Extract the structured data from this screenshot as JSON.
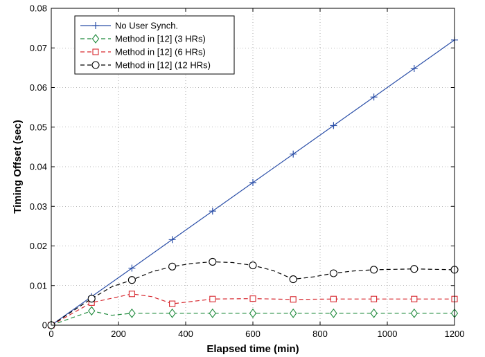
{
  "chart_data": {
    "type": "line",
    "xlabel": "Elapsed time (min)",
    "ylabel": "Timing Offset (sec)",
    "xlim": [
      0,
      1200
    ],
    "ylim": [
      0,
      0.08
    ],
    "x_ticks": [
      0,
      200,
      400,
      600,
      800,
      1000,
      1200
    ],
    "y_ticks": [
      0,
      0.01,
      0.02,
      0.03,
      0.04,
      0.05,
      0.06,
      0.07,
      0.08
    ],
    "x_tick_labels": [
      "0",
      "200",
      "400",
      "600",
      "800",
      "1000",
      "1200"
    ],
    "y_tick_labels": [
      "0",
      "0.01",
      "0.02",
      "0.03",
      "0.04",
      "0.05",
      "0.06",
      "0.07",
      "0.08"
    ],
    "grid": true,
    "legend_position": "top-left",
    "series": [
      {
        "name": "No User Synch.",
        "color": "#2b4fa8",
        "line_style": "solid",
        "marker": "plus",
        "x": [
          0,
          120,
          240,
          360,
          480,
          600,
          720,
          840,
          960,
          1080,
          1200
        ],
        "y": [
          0,
          0.0072,
          0.0144,
          0.0216,
          0.0288,
          0.036,
          0.0432,
          0.0504,
          0.0576,
          0.0648,
          0.072
        ],
        "marker_x": [
          0,
          120,
          240,
          360,
          480,
          600,
          720,
          840,
          960,
          1080,
          1200
        ],
        "marker_y": [
          0,
          0.0072,
          0.0144,
          0.0216,
          0.0288,
          0.036,
          0.0432,
          0.0504,
          0.0576,
          0.0648,
          0.072
        ]
      },
      {
        "name": "Method in [12] (3 HRs)",
        "color": "#1f8a3c",
        "line_style": "dashed",
        "marker": "diamond",
        "x": [
          0,
          120,
          180,
          240,
          360,
          480,
          600,
          720,
          840,
          960,
          1080,
          1200
        ],
        "y": [
          0,
          0.0036,
          0.0025,
          0.003,
          0.003,
          0.003,
          0.003,
          0.003,
          0.003,
          0.003,
          0.003,
          0.003
        ],
        "marker_x": [
          0,
          120,
          240,
          360,
          480,
          600,
          720,
          840,
          960,
          1080,
          1200
        ],
        "marker_y": [
          0,
          0.0036,
          0.003,
          0.003,
          0.003,
          0.003,
          0.003,
          0.003,
          0.003,
          0.003,
          0.003
        ]
      },
      {
        "name": "Method in [12] (6 HRs)",
        "color": "#d7282f",
        "line_style": "dashed",
        "marker": "square",
        "x": [
          0,
          120,
          240,
          300,
          360,
          480,
          600,
          720,
          840,
          960,
          1080,
          1200
        ],
        "y": [
          0,
          0.0057,
          0.0079,
          0.0072,
          0.0054,
          0.0066,
          0.0067,
          0.0065,
          0.0066,
          0.0066,
          0.0066,
          0.0066
        ],
        "marker_x": [
          0,
          120,
          240,
          360,
          480,
          600,
          720,
          840,
          960,
          1080,
          1200
        ],
        "marker_y": [
          0,
          0.0057,
          0.0079,
          0.0054,
          0.0066,
          0.0067,
          0.0065,
          0.0066,
          0.0066,
          0.0066,
          0.0066
        ]
      },
      {
        "name": "Method in [12] (12 HRs)",
        "color": "#000000",
        "line_style": "dashed",
        "marker": "circle",
        "x": [
          0,
          120,
          180,
          240,
          300,
          360,
          420,
          480,
          540,
          600,
          660,
          720,
          780,
          840,
          900,
          960,
          1020,
          1080,
          1140,
          1200
        ],
        "y": [
          0,
          0.0067,
          0.0097,
          0.0114,
          0.0135,
          0.0148,
          0.0156,
          0.016,
          0.0158,
          0.0151,
          0.0138,
          0.0116,
          0.0122,
          0.0131,
          0.0137,
          0.014,
          0.0141,
          0.0142,
          0.0141,
          0.014
        ],
        "marker_x": [
          0,
          120,
          240,
          360,
          480,
          600,
          720,
          840,
          960,
          1080,
          1200
        ],
        "marker_y": [
          0,
          0.0067,
          0.0114,
          0.0148,
          0.016,
          0.0151,
          0.0116,
          0.0131,
          0.014,
          0.0142,
          0.014
        ]
      }
    ]
  }
}
